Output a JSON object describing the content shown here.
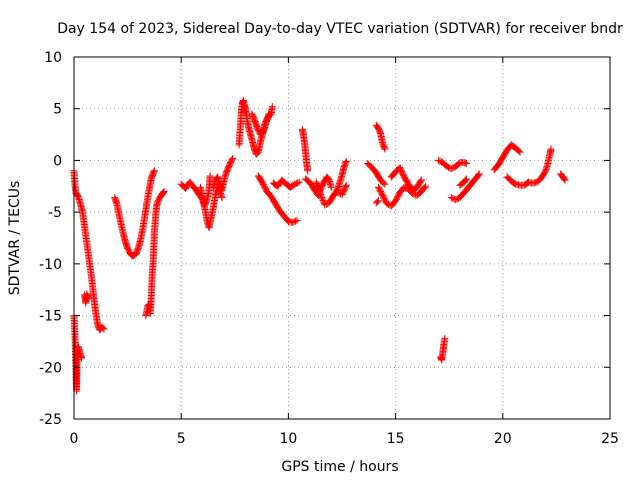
{
  "chart_data": {
    "type": "scatter",
    "title": "Day 154 of 2023, Sidereal Day-to-day VTEC variation (SDTVAR) for receiver bndr",
    "xlabel": "GPS time / hours",
    "ylabel": "SDTVAR / TECUs",
    "xlim": [
      0,
      25
    ],
    "ylim": [
      -25,
      10
    ],
    "x_ticks": [
      0,
      5,
      10,
      15,
      20,
      25
    ],
    "y_ticks": [
      -25,
      -20,
      -15,
      -10,
      -5,
      0,
      5,
      10
    ],
    "x_tick_labels": [
      "0",
      "5",
      "10",
      "15",
      "20",
      "25"
    ],
    "y_tick_labels": [
      "-25",
      "-20",
      "-15",
      "-10",
      "-5",
      "0",
      "5",
      "10"
    ],
    "grid": true,
    "marker": "+",
    "series": [
      {
        "name": "SDTVAR",
        "color": "#ff0000",
        "segments": [
          [
            [
              0.0,
              -1.0
            ],
            [
              0.05,
              -2.5
            ],
            [
              0.1,
              -3.2
            ],
            [
              0.2,
              -3.5
            ],
            [
              0.3,
              -4.2
            ],
            [
              0.4,
              -5.0
            ],
            [
              0.5,
              -6.5
            ],
            [
              0.6,
              -8.0
            ],
            [
              0.7,
              -9.5
            ],
            [
              0.8,
              -11.0
            ],
            [
              0.9,
              -12.8
            ],
            [
              1.0,
              -14.5
            ],
            [
              1.1,
              -15.8
            ],
            [
              1.2,
              -16.4
            ],
            [
              1.3,
              -16.1
            ],
            [
              1.4,
              -16.3
            ]
          ],
          [
            [
              0.0,
              -15.0
            ],
            [
              0.05,
              -17.0
            ],
            [
              0.08,
              -19.5
            ],
            [
              0.1,
              -21.0
            ],
            [
              0.12,
              -22.3
            ],
            [
              0.15,
              -18.5
            ],
            [
              0.2,
              -18.0
            ],
            [
              0.3,
              -18.8
            ],
            [
              0.35,
              -19.1
            ]
          ],
          [
            [
              0.5,
              -13.0
            ],
            [
              0.55,
              -13.8
            ],
            [
              0.6,
              -12.9
            ],
            [
              0.65,
              -13.4
            ]
          ],
          [
            [
              1.9,
              -3.6
            ],
            [
              2.0,
              -4.2
            ],
            [
              2.1,
              -5.2
            ],
            [
              2.2,
              -6.2
            ],
            [
              2.3,
              -7.1
            ],
            [
              2.4,
              -7.9
            ],
            [
              2.5,
              -8.5
            ],
            [
              2.6,
              -8.9
            ],
            [
              2.7,
              -9.2
            ],
            [
              2.8,
              -9.2
            ],
            [
              2.9,
              -9.0
            ],
            [
              3.0,
              -8.5
            ],
            [
              3.1,
              -7.7
            ],
            [
              3.2,
              -6.7
            ],
            [
              3.3,
              -5.5
            ],
            [
              3.4,
              -4.1
            ],
            [
              3.5,
              -2.9
            ],
            [
              3.6,
              -1.8
            ],
            [
              3.7,
              -1.2
            ],
            [
              3.75,
              -1.0
            ]
          ],
          [
            [
              3.35,
              -15.0
            ],
            [
              3.4,
              -14.6
            ],
            [
              3.45,
              -14.0
            ],
            [
              3.5,
              -13.9
            ],
            [
              3.55,
              -14.8
            ],
            [
              3.6,
              -13.5
            ],
            [
              3.65,
              -11.0
            ],
            [
              3.7,
              -9.5
            ],
            [
              3.75,
              -7.0
            ],
            [
              3.8,
              -5.5
            ],
            [
              3.85,
              -4.5
            ],
            [
              3.9,
              -4.0
            ],
            [
              4.0,
              -3.6
            ],
            [
              4.1,
              -3.3
            ],
            [
              4.2,
              -3.0
            ]
          ],
          [
            [
              5.0,
              -2.3
            ],
            [
              5.2,
              -2.7
            ],
            [
              5.4,
              -2.1
            ],
            [
              5.6,
              -2.6
            ],
            [
              5.8,
              -3.2
            ],
            [
              6.0,
              -3.8
            ],
            [
              6.1,
              -4.6
            ],
            [
              6.2,
              -5.8
            ],
            [
              6.3,
              -6.5
            ],
            [
              6.4,
              -5.5
            ],
            [
              6.5,
              -4.6
            ],
            [
              6.6,
              -3.3
            ],
            [
              6.7,
              -2.5
            ],
            [
              6.8,
              -2.9
            ],
            [
              6.9,
              -3.6
            ]
          ],
          [
            [
              5.9,
              -2.6
            ],
            [
              6.0,
              -3.5
            ],
            [
              6.1,
              -4.3
            ],
            [
              6.2,
              -3.8
            ],
            [
              6.3,
              -2.9
            ],
            [
              6.35,
              -1.5
            ]
          ],
          [
            [
              6.5,
              -2.6
            ],
            [
              6.6,
              -1.9
            ],
            [
              6.7,
              -1.6
            ],
            [
              6.8,
              -2.3
            ],
            [
              6.9,
              -2.9
            ],
            [
              7.0,
              -1.9
            ],
            [
              7.1,
              -1.2
            ],
            [
              7.2,
              -0.7
            ],
            [
              7.3,
              -0.2
            ],
            [
              7.4,
              0.2
            ]
          ],
          [
            [
              7.7,
              1.5
            ],
            [
              7.75,
              3.0
            ],
            [
              7.8,
              4.5
            ],
            [
              7.85,
              5.5
            ],
            [
              7.9,
              5.8
            ],
            [
              7.95,
              5.3
            ],
            [
              8.0,
              5.0
            ],
            [
              8.05,
              4.2
            ],
            [
              8.1,
              3.6
            ],
            [
              8.2,
              2.8
            ],
            [
              8.3,
              2.0
            ],
            [
              8.4,
              1.2
            ],
            [
              8.5,
              0.6
            ],
            [
              8.6,
              0.8
            ],
            [
              8.7,
              1.8
            ],
            [
              8.8,
              2.6
            ],
            [
              8.9,
              3.5
            ],
            [
              9.0,
              4.0
            ],
            [
              9.1,
              4.3
            ],
            [
              9.2,
              4.5
            ],
            [
              9.25,
              5.2
            ]
          ],
          [
            [
              8.3,
              4.5
            ],
            [
              8.4,
              4.0
            ],
            [
              8.5,
              3.4
            ],
            [
              8.6,
              2.9
            ],
            [
              8.7,
              2.5
            ],
            [
              8.8,
              2.7
            ],
            [
              8.9,
              3.2
            ],
            [
              9.0,
              3.9
            ],
            [
              9.1,
              4.5
            ]
          ],
          [
            [
              8.6,
              -1.5
            ],
            [
              8.8,
              -2.2
            ],
            [
              9.0,
              -3.0
            ],
            [
              9.2,
              -3.5
            ],
            [
              9.4,
              -4.2
            ],
            [
              9.6,
              -4.9
            ],
            [
              9.8,
              -5.4
            ],
            [
              10.0,
              -5.9
            ],
            [
              10.2,
              -6.0
            ],
            [
              10.4,
              -5.8
            ]
          ],
          [
            [
              9.3,
              -2.2
            ],
            [
              9.5,
              -2.5
            ],
            [
              9.7,
              -1.9
            ],
            [
              9.9,
              -2.3
            ],
            [
              10.1,
              -2.6
            ],
            [
              10.3,
              -2.3
            ],
            [
              10.5,
              -2.1
            ]
          ],
          [
            [
              10.65,
              3.0
            ],
            [
              10.7,
              2.5
            ],
            [
              10.75,
              1.8
            ],
            [
              10.8,
              0.8
            ],
            [
              10.85,
              -0.2
            ],
            [
              10.9,
              -1.0
            ]
          ],
          [
            [
              10.8,
              -1.8
            ],
            [
              11.0,
              -2.1
            ],
            [
              11.2,
              -2.8
            ],
            [
              11.4,
              -3.4
            ],
            [
              11.5,
              -2.8
            ],
            [
              11.6,
              -2.3
            ],
            [
              11.8,
              -1.6
            ],
            [
              11.9,
              -1.9
            ],
            [
              12.0,
              -2.6
            ]
          ],
          [
            [
              11.3,
              -2.1
            ],
            [
              11.5,
              -3.3
            ],
            [
              11.7,
              -4.3
            ],
            [
              11.9,
              -4.1
            ],
            [
              12.1,
              -3.4
            ],
            [
              12.3,
              -2.8
            ],
            [
              12.4,
              -2.1
            ],
            [
              12.5,
              -1.4
            ],
            [
              12.6,
              -0.6
            ],
            [
              12.7,
              -0.1
            ]
          ],
          [
            [
              12.3,
              -3.1
            ],
            [
              12.5,
              -3.3
            ],
            [
              12.6,
              -2.9
            ],
            [
              12.7,
              -2.4
            ]
          ],
          [
            [
              13.7,
              -0.3
            ],
            [
              13.9,
              -0.7
            ],
            [
              14.1,
              -1.2
            ],
            [
              14.3,
              -1.9
            ],
            [
              14.5,
              -2.3
            ]
          ],
          [
            [
              14.1,
              3.4
            ],
            [
              14.2,
              3.1
            ],
            [
              14.3,
              2.6
            ],
            [
              14.4,
              1.6
            ],
            [
              14.5,
              1.1
            ]
          ],
          [
            [
              14.2,
              -2.6
            ],
            [
              14.4,
              -3.4
            ],
            [
              14.6,
              -4.2
            ],
            [
              14.8,
              -4.4
            ],
            [
              15.0,
              -3.9
            ],
            [
              15.2,
              -3.1
            ],
            [
              15.4,
              -2.6
            ],
            [
              15.6,
              -2.8
            ],
            [
              15.8,
              -3.2
            ],
            [
              16.0,
              -3.4
            ],
            [
              16.2,
              -3.0
            ],
            [
              16.4,
              -2.5
            ]
          ],
          [
            [
              14.8,
              -1.6
            ],
            [
              15.0,
              -1.1
            ],
            [
              15.2,
              -0.7
            ],
            [
              15.4,
              -1.6
            ],
            [
              15.6,
              -2.3
            ],
            [
              15.8,
              -2.9
            ],
            [
              16.0,
              -2.6
            ],
            [
              16.2,
              -1.9
            ]
          ],
          [
            [
              14.1,
              -4.1
            ],
            [
              14.2,
              -3.9
            ]
          ],
          [
            [
              17.1,
              -19.0
            ],
            [
              17.15,
              -19.3
            ],
            [
              17.2,
              -18.6
            ],
            [
              17.25,
              -17.8
            ],
            [
              17.3,
              -17.2
            ]
          ],
          [
            [
              17.0,
              0.0
            ],
            [
              17.2,
              -0.2
            ],
            [
              17.4,
              -0.6
            ],
            [
              17.6,
              -0.8
            ],
            [
              17.8,
              -0.6
            ],
            [
              18.0,
              -0.2
            ],
            [
              18.2,
              -0.2
            ],
            [
              18.3,
              -0.3
            ]
          ],
          [
            [
              17.6,
              -3.6
            ],
            [
              17.8,
              -3.8
            ],
            [
              18.0,
              -3.6
            ],
            [
              18.2,
              -3.1
            ],
            [
              18.4,
              -2.6
            ],
            [
              18.6,
              -2.1
            ],
            [
              18.8,
              -1.6
            ],
            [
              18.9,
              -1.3
            ]
          ],
          [
            [
              18.0,
              -2.4
            ],
            [
              18.2,
              -2.1
            ],
            [
              18.3,
              -1.8
            ]
          ],
          [
            [
              19.6,
              -0.9
            ],
            [
              19.8,
              -0.4
            ],
            [
              20.0,
              0.3
            ],
            [
              20.2,
              1.0
            ],
            [
              20.4,
              1.5
            ],
            [
              20.6,
              1.2
            ],
            [
              20.8,
              0.8
            ]
          ],
          [
            [
              20.2,
              -1.6
            ],
            [
              20.4,
              -2.0
            ],
            [
              20.6,
              -2.3
            ],
            [
              20.8,
              -2.4
            ],
            [
              21.0,
              -2.4
            ],
            [
              21.2,
              -2.1
            ],
            [
              21.4,
              -2.2
            ],
            [
              21.6,
              -2.1
            ],
            [
              21.8,
              -1.7
            ],
            [
              22.0,
              -1.0
            ],
            [
              22.1,
              -0.3
            ],
            [
              22.2,
              0.6
            ],
            [
              22.25,
              1.1
            ]
          ],
          [
            [
              22.7,
              -1.3
            ],
            [
              22.8,
              -1.6
            ],
            [
              22.9,
              -1.9
            ]
          ]
        ]
      }
    ]
  }
}
